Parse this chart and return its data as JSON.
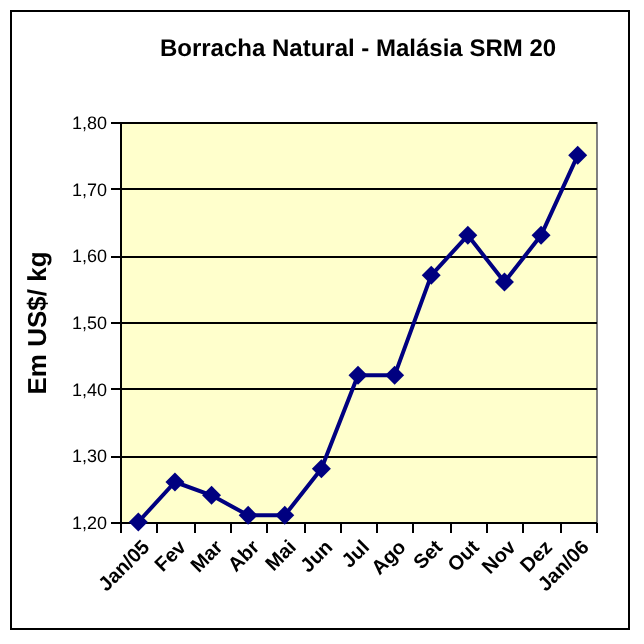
{
  "chart_data": {
    "type": "line",
    "title": "Borracha Natural - Malásia SRM 20",
    "ylabel": "Em US$/ kg",
    "categories": [
      "Jan/05",
      "Fev",
      "Mar",
      "Abr",
      "Mai",
      "Jun",
      "Jul",
      "Ago",
      "Set",
      "Out",
      "Nov",
      "Dez",
      "Jan/06"
    ],
    "series": [
      {
        "color": "#000080",
        "values": [
          1.2,
          1.26,
          1.24,
          1.21,
          1.21,
          1.28,
          1.42,
          1.42,
          1.57,
          1.63,
          1.56,
          1.63,
          1.75
        ]
      }
    ],
    "ylim": [
      1.2,
      1.8
    ],
    "yticks": [
      {
        "value": 1.2,
        "label": "1,20"
      },
      {
        "value": 1.3,
        "label": "1,30"
      },
      {
        "value": 1.4,
        "label": "1,40"
      },
      {
        "value": 1.5,
        "label": "1,50"
      },
      {
        "value": 1.6,
        "label": "1,60"
      },
      {
        "value": 1.7,
        "label": "1,70"
      },
      {
        "value": 1.8,
        "label": "1,80"
      }
    ],
    "grid": "y",
    "marker": "diamond",
    "line_style": "solid"
  }
}
